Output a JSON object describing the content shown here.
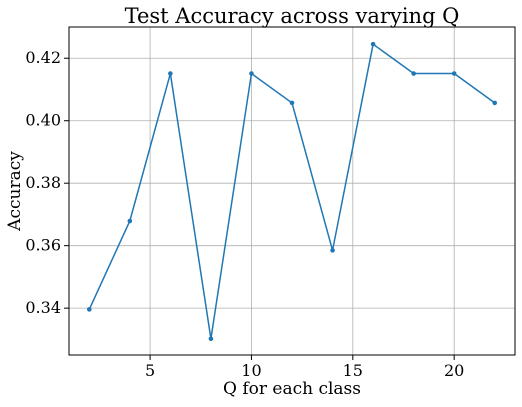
{
  "chart_data": {
    "type": "line",
    "title": "Test Accuracy across varying Q",
    "xlabel": "Q for each class",
    "ylabel": "Accuracy",
    "xlim": [
      1,
      23
    ],
    "ylim": [
      0.325,
      0.43
    ],
    "xticks": [
      5,
      10,
      15,
      20
    ],
    "xtick_labels": [
      "5",
      "10",
      "15",
      "20"
    ],
    "yticks": [
      0.34,
      0.36,
      0.38,
      0.4,
      0.42
    ],
    "ytick_labels": [
      "0.34",
      "0.36",
      "0.38",
      "0.40",
      "0.42"
    ],
    "grid": true,
    "series": [
      {
        "color": "#1f77b4",
        "marker": "dot",
        "x": [
          2,
          4,
          6,
          8,
          10,
          12,
          14,
          16,
          18,
          20,
          22
        ],
        "y": [
          0.3396,
          0.3679,
          0.4151,
          0.3302,
          0.4151,
          0.4057,
          0.3585,
          0.4245,
          0.4151,
          0.4151,
          0.4057
        ]
      }
    ]
  }
}
